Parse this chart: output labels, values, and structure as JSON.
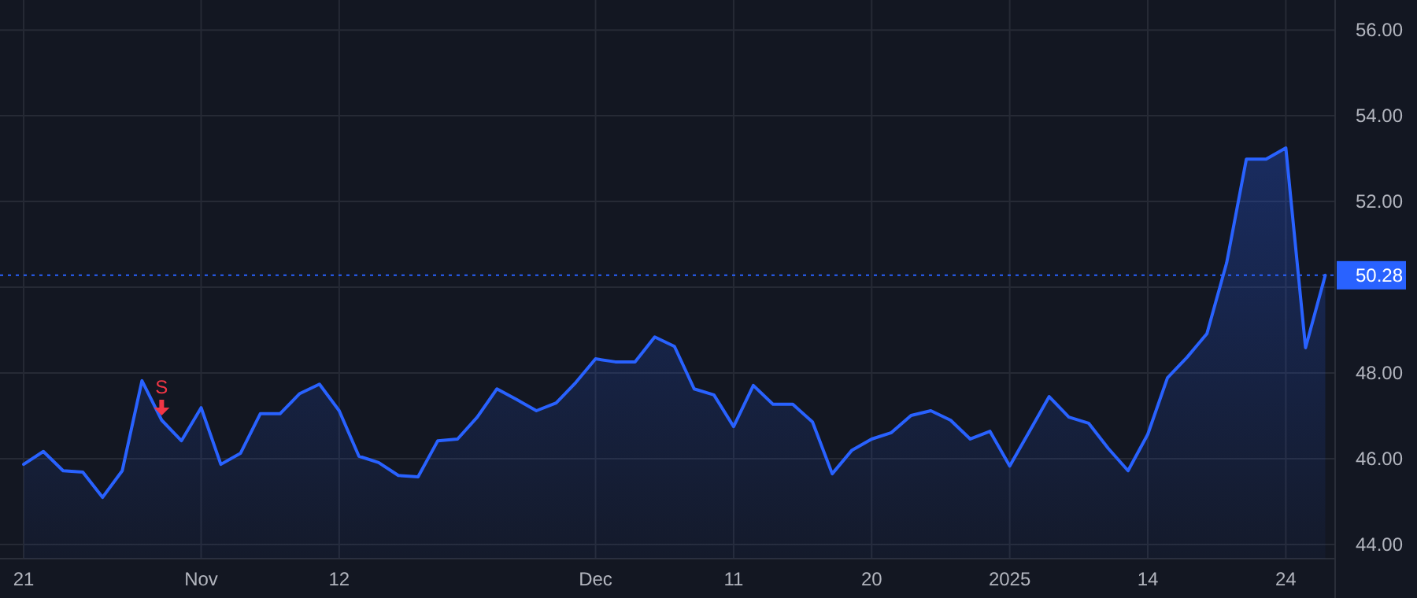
{
  "chart_data": {
    "type": "area",
    "categories": [
      "21",
      null,
      null,
      null,
      null,
      null,
      null,
      null,
      null,
      "Nov",
      null,
      null,
      null,
      null,
      null,
      null,
      "12",
      null,
      null,
      null,
      null,
      null,
      null,
      null,
      null,
      null,
      null,
      null,
      null,
      "Dec",
      null,
      null,
      null,
      null,
      null,
      null,
      "11",
      null,
      null,
      null,
      null,
      null,
      null,
      "20",
      null,
      null,
      null,
      null,
      null,
      null,
      "2025",
      null,
      null,
      null,
      null,
      null,
      null,
      "14",
      null,
      null,
      null,
      null,
      null,
      null,
      "24",
      null,
      null
    ],
    "series": [
      {
        "color": "#2962ff",
        "values": [
          45.87,
          46.17,
          45.72,
          45.69,
          45.1,
          45.72,
          47.82,
          46.9,
          46.42,
          47.19,
          45.87,
          46.13,
          47.05,
          47.05,
          47.52,
          47.74,
          47.12,
          46.06,
          45.91,
          45.61,
          45.58,
          46.42,
          46.46,
          46.97,
          47.63,
          47.38,
          47.12,
          47.3,
          47.78,
          48.33,
          48.26,
          48.26,
          48.84,
          48.62,
          47.63,
          47.49,
          46.75,
          47.71,
          47.27,
          47.27,
          46.86,
          45.65,
          46.2,
          46.46,
          46.61,
          47.01,
          47.12,
          46.9,
          46.46,
          46.64,
          45.83,
          46.64,
          47.45,
          46.97,
          46.83,
          46.24,
          45.72,
          46.57,
          47.89,
          48.37,
          48.92,
          50.57,
          52.99,
          52.99,
          53.25,
          48.59,
          50.28
        ]
      }
    ],
    "ylim": [
      43.67,
      56.7
    ],
    "yticks": [
      {
        "value": 44,
        "label": "44.00"
      },
      {
        "value": 46,
        "label": "46.00"
      },
      {
        "value": 48,
        "label": "48.00"
      },
      {
        "value": 50,
        "label": null
      },
      {
        "value": 52,
        "label": "52.00"
      },
      {
        "value": 54,
        "label": "54.00"
      },
      {
        "value": 56,
        "label": "56.00"
      }
    ],
    "grid": true,
    "line_style": "solid",
    "marker": "none",
    "ref_lines": [
      {
        "axis": "y",
        "value": 50.28,
        "label": "50.28",
        "color": "#2962ff",
        "line_style": "dotted"
      }
    ],
    "annotations": [
      {
        "text": "S",
        "y": 46.9
      }
    ]
  }
}
